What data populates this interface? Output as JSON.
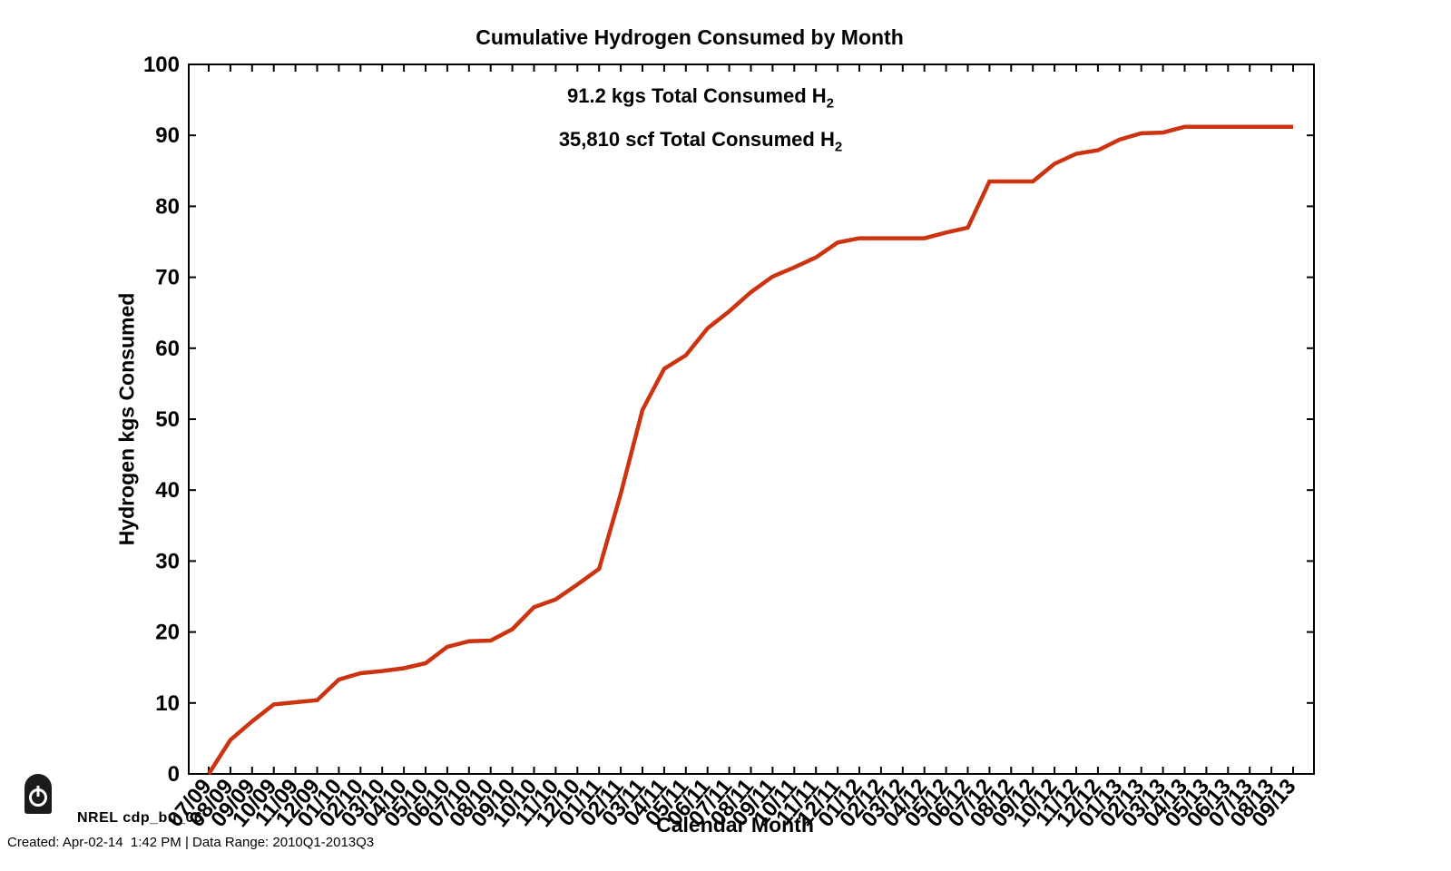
{
  "annotations": {
    "kgs_text": "91.2 kgs Total Consumed H",
    "kgs_sub": "2",
    "scf_text": "35,810 scf Total Consumed H",
    "scf_sub": "2"
  },
  "footer": {
    "nrel_label": "NREL cdp_bu_06",
    "created": "Created: Apr-02-14  1:42 PM | Data Range: 2010Q1-2013Q3"
  },
  "chart_data": {
    "type": "line",
    "title": "Cumulative Hydrogen Consumed by Month",
    "xlabel": "Calendar Month",
    "ylabel": "Hydrogen kgs Consumed",
    "ylim": [
      0,
      100
    ],
    "ytick_step": 10,
    "grid": false,
    "legend_position": "none",
    "line_color": "#CC3311",
    "axis_color": "#000000",
    "total_consumed_kgs": 91.2,
    "total_consumed_scf": 35810,
    "categories": [
      "07/09",
      "08/09",
      "09/09",
      "10/09",
      "11/09",
      "12/09",
      "01/10",
      "02/10",
      "03/10",
      "04/10",
      "05/10",
      "06/10",
      "07/10",
      "08/10",
      "09/10",
      "10/10",
      "11/10",
      "12/10",
      "01/11",
      "02/11",
      "03/11",
      "04/11",
      "05/11",
      "06/11",
      "07/11",
      "08/11",
      "09/11",
      "10/11",
      "11/11",
      "12/11",
      "01/12",
      "02/12",
      "03/12",
      "04/12",
      "05/12",
      "06/12",
      "07/12",
      "08/12",
      "09/12",
      "10/12",
      "11/12",
      "12/12",
      "01/13",
      "02/13",
      "03/13",
      "04/13",
      "05/13",
      "06/13",
      "07/13",
      "08/13",
      "09/13"
    ],
    "values": [
      0,
      4.8,
      7.4,
      9.8,
      10.1,
      10.4,
      13.3,
      14.2,
      14.5,
      14.9,
      15.6,
      17.9,
      18.7,
      18.8,
      20.4,
      23.5,
      24.6,
      26.7,
      28.9,
      39.5,
      51.3,
      57.1,
      59.0,
      62.8,
      65.2,
      67.9,
      70.1,
      71.4,
      72.8,
      74.9,
      75.5,
      75.5,
      75.5,
      75.5,
      76.3,
      77.0,
      83.5,
      83.5,
      83.5,
      86.0,
      87.4,
      87.9,
      89.4,
      90.3,
      90.4,
      91.2,
      91.2,
      91.2,
      91.2,
      91.2,
      91.2
    ]
  }
}
